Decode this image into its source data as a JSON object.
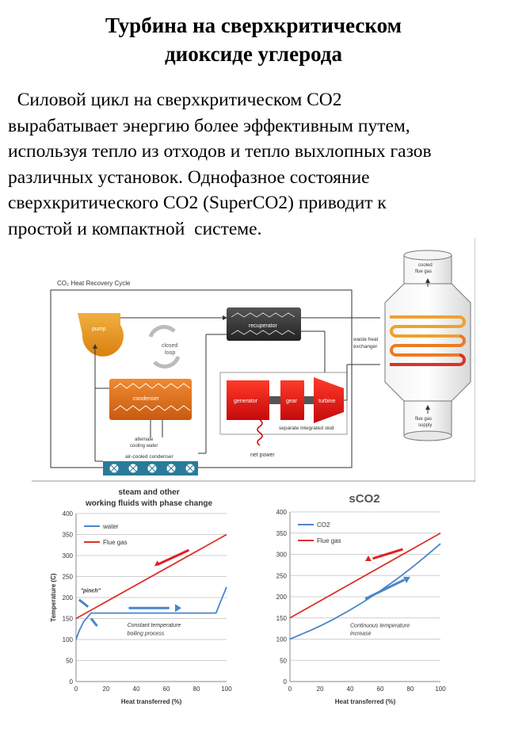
{
  "title": {
    "line1": "Турбина на сверхкритическом",
    "line2": "диоксиде углерода"
  },
  "paragraph": {
    "line1": "  Силовой цикл на сверхкритическом СО2",
    "line2": "вырабатывает энергию более эффективным путем,",
    "line3": "используя тепло из отходов и тепло выхлопных газов",
    "line4": "различных установок. Однофазное состояние",
    "line5": "сверхкритического СО2 (SuperCO2) приводит к",
    "line6": "простой и компактной  системе."
  },
  "diagram": {
    "box_title": "CO₂ Heat Recovery Cycle",
    "pump": "pump",
    "closed_loop_1": "closed",
    "closed_loop_2": "loop",
    "recuperator": "recuperator",
    "condenser": "condenser",
    "generator": "generator",
    "gear": "gear",
    "turbine": "turbine",
    "skid": "separate integrated skid",
    "net_power": "net power",
    "alt_cooling_1": "alternate",
    "alt_cooling_2": "cooling water",
    "air_condenser": "air-cooled condenser",
    "whe_1": "waste heat",
    "whe_2": "exchanger",
    "cooled_1": "cooled",
    "cooled_2": "flue gas",
    "supply_1": "flue gas",
    "supply_2": "supply"
  },
  "colors": {
    "pump": "#e59a1c",
    "condenser": "#e0701c",
    "generator": "#dd1c1c",
    "recuperator": "#3a3a3a",
    "flue_gas": "#d9342b",
    "water": "#4a86c8",
    "coil": "#f0a030"
  },
  "chart_data": [
    {
      "type": "line",
      "title": "steam and other working fluids with phase change",
      "title_line1": "steam and other",
      "title_line2": "working fluids with phase change",
      "xlabel": "Heat transferred (%)",
      "ylabel": "Temperature (C)",
      "xlim": [
        0,
        100
      ],
      "ylim": [
        0,
        400
      ],
      "xticks": [
        "0",
        "20",
        "40",
        "60",
        "80",
        "100"
      ],
      "yticks": [
        "0",
        "50",
        "100",
        "150",
        "200",
        "250",
        "300",
        "350",
        "400"
      ],
      "grid": true,
      "legend": "top-left",
      "series": [
        {
          "name": "water",
          "color": "#4a86c8",
          "x": [
            0,
            2,
            5,
            8,
            10,
            93,
            96,
            100
          ],
          "y": [
            100,
            120,
            142,
            155,
            163,
            163,
            190,
            225
          ]
        },
        {
          "name": "Flue gas",
          "color": "#d9342b",
          "x": [
            0,
            100
          ],
          "y": [
            150,
            350
          ]
        }
      ],
      "annotations": {
        "pinch": "\"pinch\"",
        "note1": "Constant temperature",
        "note2": "boiling process"
      }
    },
    {
      "type": "line",
      "title": "sCO2",
      "xlabel": "Heat transferred (%)",
      "ylabel": "",
      "xlim": [
        0,
        100
      ],
      "ylim": [
        0,
        400
      ],
      "xticks": [
        "0",
        "20",
        "40",
        "60",
        "80",
        "100"
      ],
      "yticks": [
        "0",
        "50",
        "100",
        "150",
        "200",
        "250",
        "300",
        "350",
        "400"
      ],
      "grid": true,
      "legend": "top-left",
      "series": [
        {
          "name": "CO2",
          "color": "#4a86c8",
          "x": [
            0,
            20,
            40,
            60,
            80,
            100
          ],
          "y": [
            100,
            130,
            168,
            213,
            265,
            325
          ]
        },
        {
          "name": "Flue gas",
          "color": "#d9342b",
          "x": [
            0,
            100
          ],
          "y": [
            150,
            350
          ]
        }
      ],
      "annotations": {
        "note1": "Continuous temperature",
        "note2": "increase"
      }
    }
  ]
}
